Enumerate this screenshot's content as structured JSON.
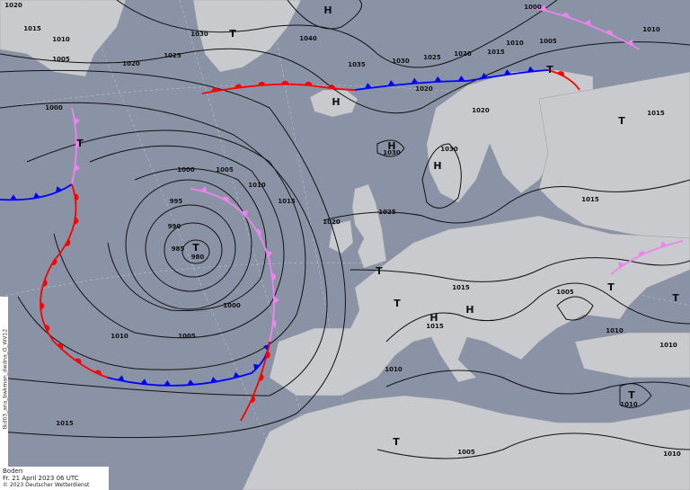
{
  "legend": {
    "level": "Boden",
    "datetime": "Fr. 21 April 2023 06 UTC",
    "copyright": "© 2023 Deutscher Wetterdienst"
  },
  "product_id": "tkd03_ana_bwkman_dwdna_O_WV12",
  "colors": {
    "sea": "#8a93a5",
    "land": "#c9cacd",
    "warm_front": "#ff0000",
    "cold_front": "#0000ff",
    "occlusion": "#ee82ee",
    "isobar": "#111111"
  },
  "isobar_labels": [
    "1020",
    "1015",
    "1010",
    "1005",
    "1020",
    "1030",
    "1040",
    "1025",
    "1035",
    "1030",
    "1025",
    "1020",
    "1015",
    "1010",
    "1005",
    "1000",
    "1010",
    "1015",
    "1000",
    "1000",
    "1005",
    "995",
    "990",
    "985",
    "980",
    "1010",
    "1015",
    "1020",
    "1025",
    "1030",
    "1020",
    "1020",
    "1030",
    "1015",
    "1005",
    "1010",
    "1010",
    "1015",
    "1015",
    "1010",
    "1010",
    "1005",
    "1000",
    "1010",
    "1015",
    "1005",
    "1010"
  ],
  "pressure_centers": [
    "H",
    "H",
    "H",
    "H",
    "H",
    "H",
    "T",
    "T",
    "T",
    "T",
    "T",
    "T",
    "T",
    "T",
    "T",
    "T",
    "T"
  ]
}
